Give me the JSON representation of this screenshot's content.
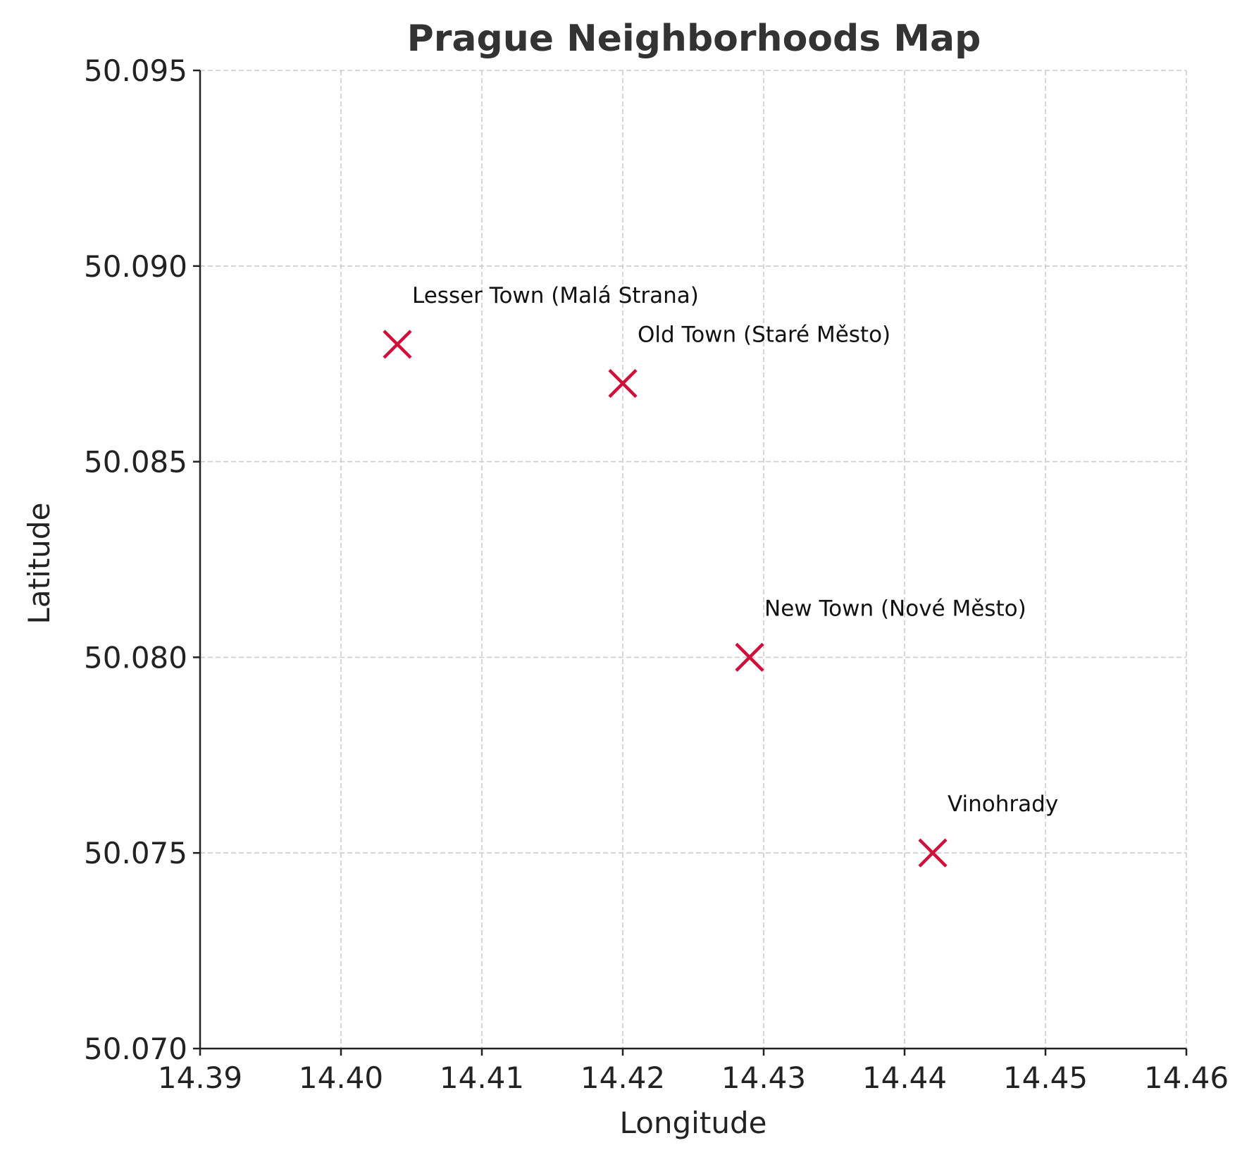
{
  "chart_data": {
    "type": "scatter",
    "title": "Prague Neighborhoods Map",
    "xlabel": "Longitude",
    "ylabel": "Latitude",
    "xlim": [
      14.39,
      14.46
    ],
    "ylim": [
      50.07,
      50.095
    ],
    "x_ticks": [
      "14.39",
      "14.40",
      "14.41",
      "14.42",
      "14.43",
      "14.44",
      "14.45",
      "14.46"
    ],
    "y_ticks": [
      "50.070",
      "50.075",
      "50.080",
      "50.085",
      "50.090",
      "50.095"
    ],
    "grid": true,
    "marker": "x",
    "marker_color": "#d0103a",
    "points": [
      {
        "label": "Lesser Town (Malá Strana)",
        "x": 14.404,
        "y": 50.088
      },
      {
        "label": "Old Town (Staré Město)",
        "x": 14.42,
        "y": 50.087
      },
      {
        "label": "New Town (Nové Město)",
        "x": 14.429,
        "y": 50.08
      },
      {
        "label": "Vinohrady",
        "x": 14.442,
        "y": 50.075
      }
    ]
  }
}
